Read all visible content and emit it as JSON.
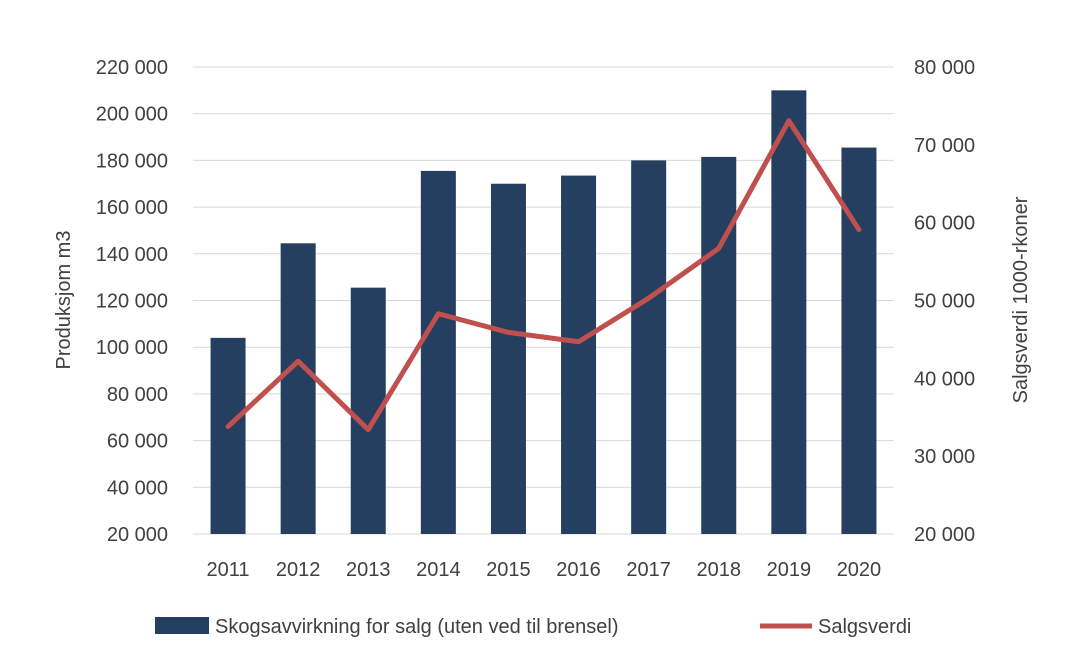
{
  "colors": {
    "bar": "#243f60",
    "line": "#c0504d"
  },
  "chart_data": {
    "type": "bar",
    "categories": [
      "2011",
      "2012",
      "2013",
      "2014",
      "2015",
      "2016",
      "2017",
      "2018",
      "2019",
      "2020"
    ],
    "series": [
      {
        "name": "Skogsavvirkning for salg (uten ved til brensel)",
        "type": "bar",
        "axis": "left",
        "values": [
          104000,
          144500,
          125500,
          175500,
          170000,
          173500,
          180000,
          181500,
          210000,
          185500
        ]
      },
      {
        "name": "Salgsverdi",
        "type": "line",
        "axis": "right",
        "values": [
          33800,
          42200,
          33400,
          48300,
          45900,
          44700,
          50300,
          56700,
          73100,
          59100
        ]
      }
    ],
    "ylabel": "Produksjom m3",
    "y2label": "Salgsverdi 1000-rkoner",
    "ylim": [
      20000,
      220000
    ],
    "y2lim": [
      20000,
      80000
    ],
    "yticks": [
      "20 000",
      "40 000",
      "60 000",
      "80 000",
      "100 000",
      "120 000",
      "140 000",
      "160 000",
      "180 000",
      "200 000",
      "220 000"
    ],
    "y2ticks": [
      "20 000",
      "30 000",
      "40 000",
      "50 000",
      "60 000",
      "70 000",
      "80 000"
    ],
    "grid": true,
    "legend": "bottom"
  }
}
